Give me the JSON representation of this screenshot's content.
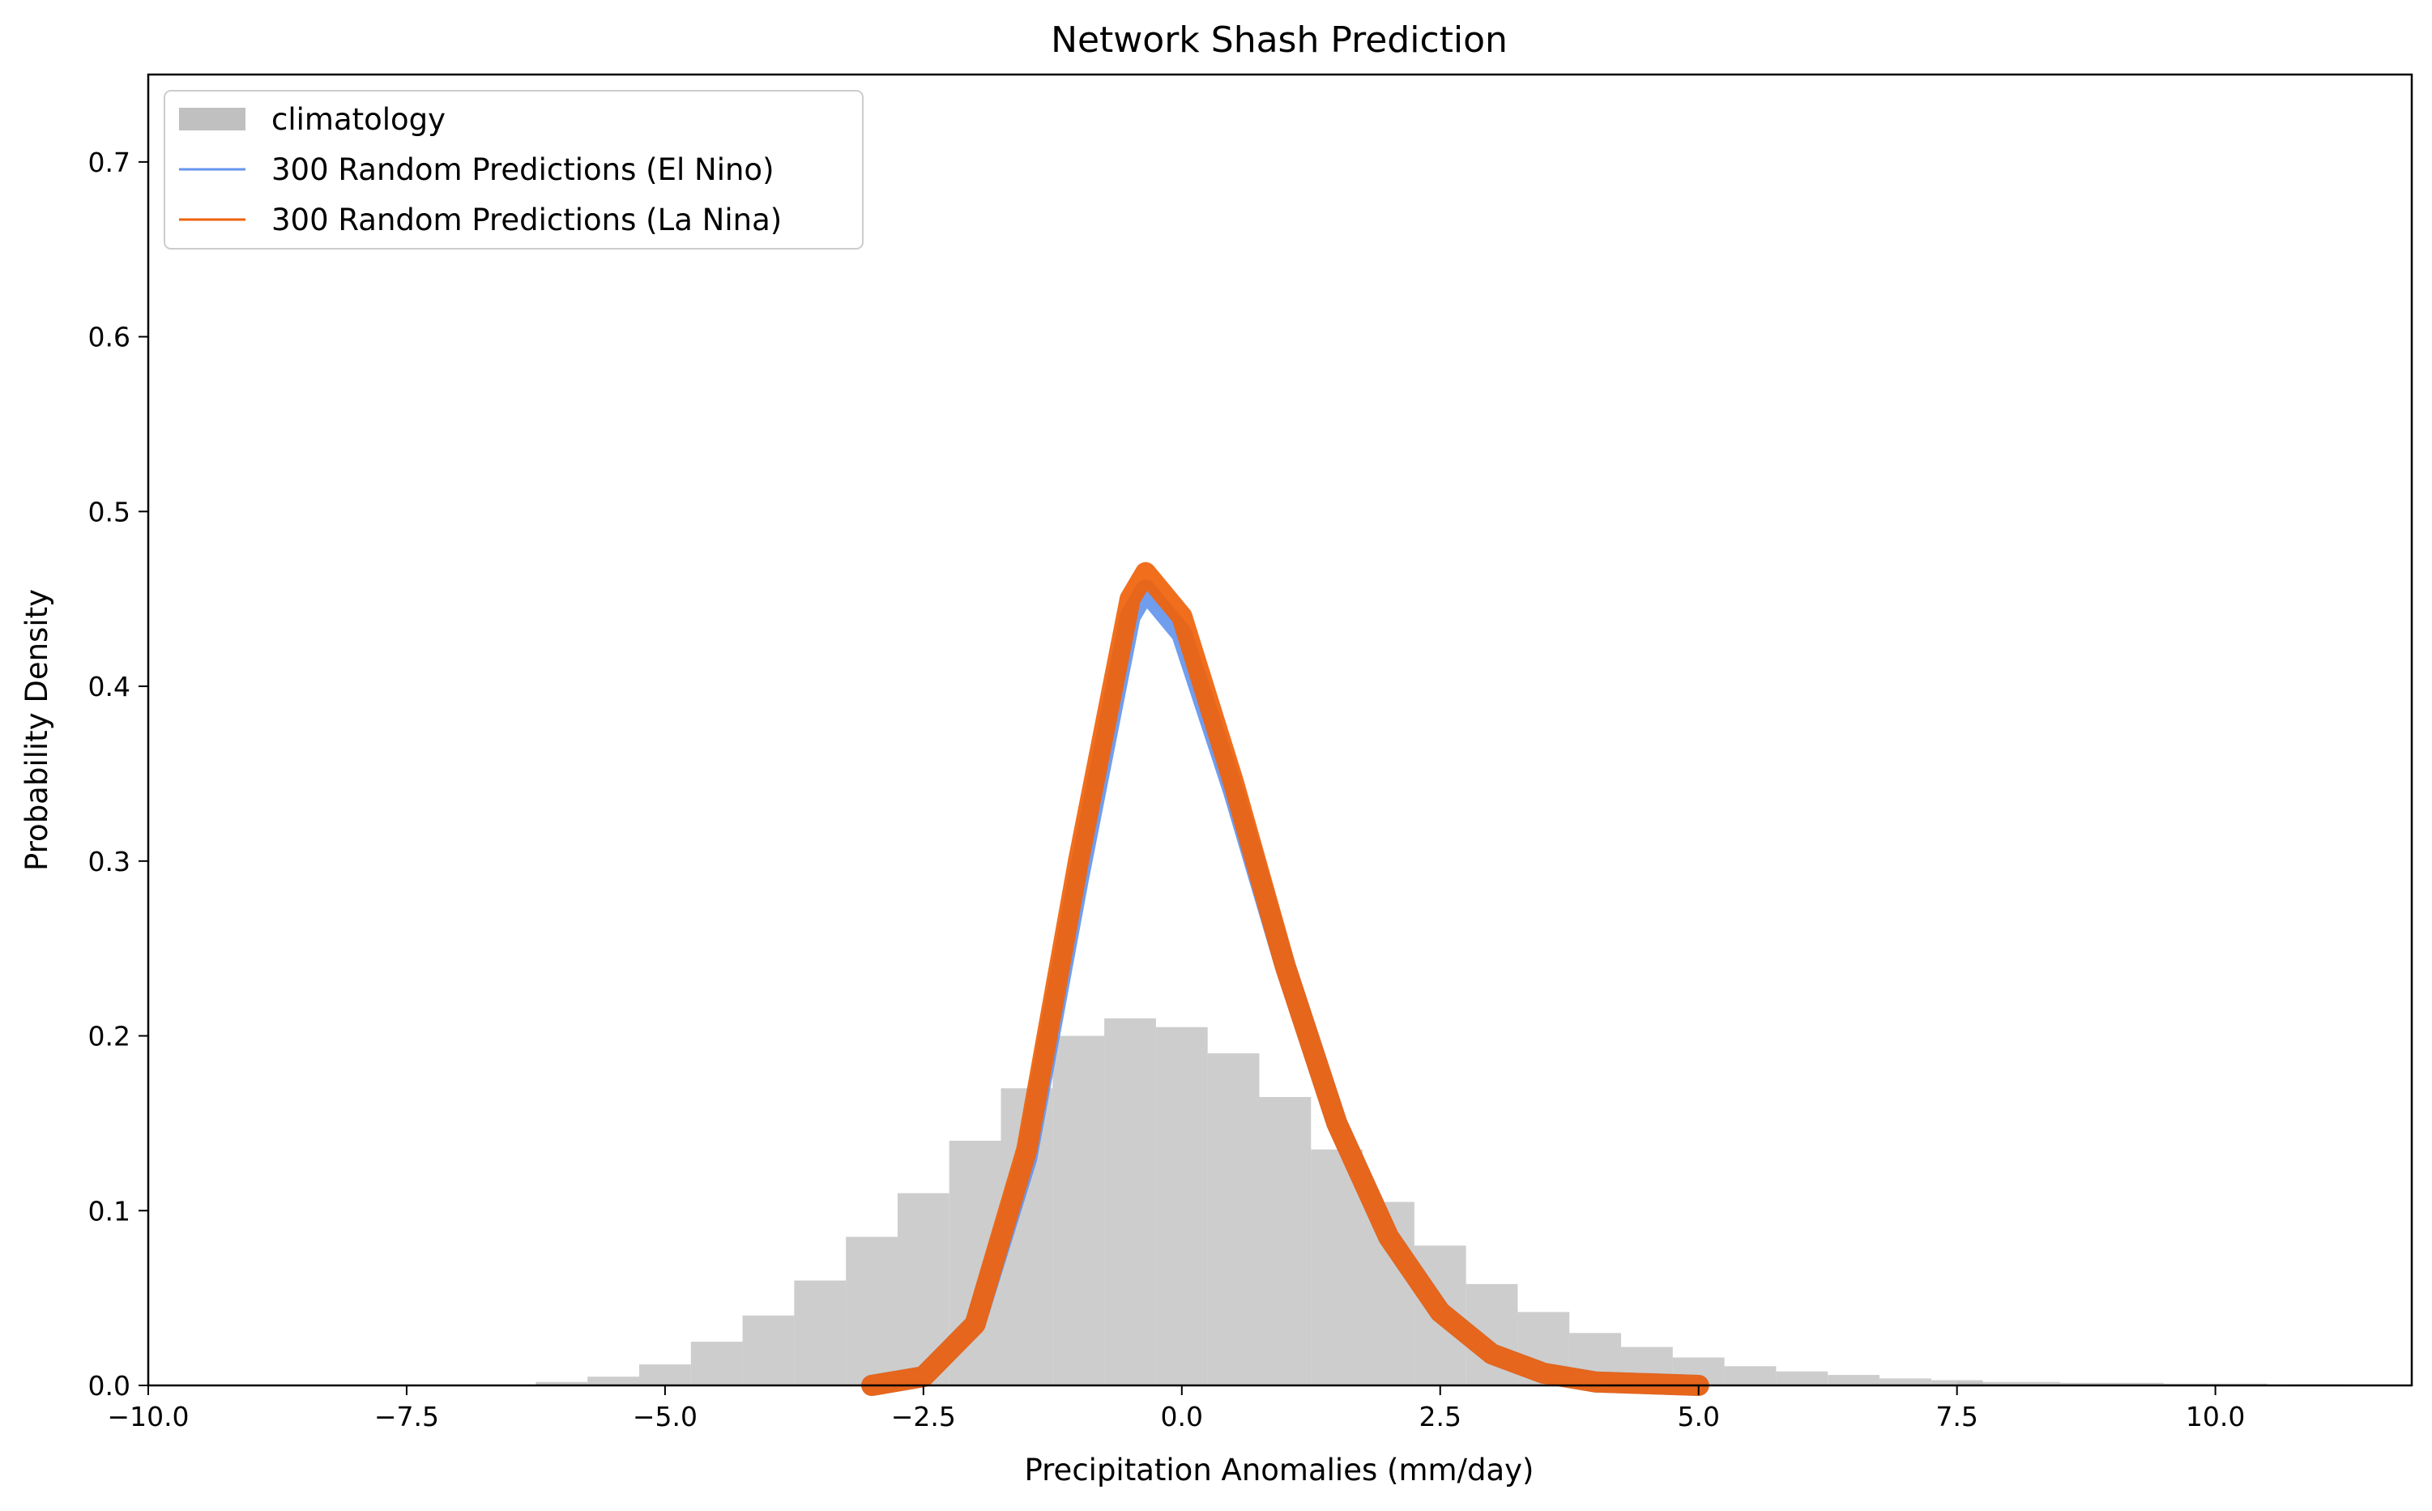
{
  "chart_data": {
    "type": "histogram+line",
    "title": "Network Shash Prediction",
    "xlabel": "Precipitation Anomalies (mm/day)",
    "ylabel": "Probability Density",
    "xlim": [
      -10.0,
      11.9
    ],
    "ylim": [
      0.0,
      0.75
    ],
    "xticks": [
      -10.0,
      -7.5,
      -5.0,
      -2.5,
      0.0,
      2.5,
      5.0,
      7.5,
      10.0
    ],
    "xtick_labels": [
      "−10.0",
      "−7.5",
      "−5.0",
      "−2.5",
      "0.0",
      "2.5",
      "5.0",
      "7.5",
      "10.0"
    ],
    "yticks": [
      0.0,
      0.1,
      0.2,
      0.3,
      0.4,
      0.5,
      0.6,
      0.7
    ],
    "ytick_labels": [
      "0.0",
      "0.1",
      "0.2",
      "0.3",
      "0.4",
      "0.5",
      "0.6",
      "0.7"
    ],
    "grid": false,
    "legend_position": "top-left",
    "colors": {
      "climatology": "#c0c0c0",
      "el_nino": "#6495ed",
      "la_nina": "#f0620a"
    },
    "legend": [
      {
        "label": "climatology",
        "kind": "patch",
        "color": "#c0c0c0"
      },
      {
        "label": "300 Random Predictions (El Nino)",
        "kind": "line",
        "color": "#6495ed"
      },
      {
        "label": "300 Random Predictions (La Nina)",
        "kind": "line",
        "color": "#f0620a"
      }
    ],
    "climatology_histogram": {
      "x": [
        -6.0,
        -5.5,
        -5.0,
        -4.5,
        -4.0,
        -3.5,
        -3.0,
        -2.5,
        -2.0,
        -1.5,
        -1.0,
        -0.5,
        0.0,
        0.5,
        1.0,
        1.5,
        2.0,
        2.5,
        3.0,
        3.5,
        4.0,
        4.5,
        5.0,
        5.5,
        6.0,
        6.5,
        7.0,
        7.5,
        8.0,
        9.0,
        10.0,
        11.0
      ],
      "density": [
        0.002,
        0.005,
        0.012,
        0.025,
        0.04,
        0.06,
        0.085,
        0.11,
        0.14,
        0.17,
        0.2,
        0.21,
        0.205,
        0.19,
        0.165,
        0.135,
        0.105,
        0.08,
        0.058,
        0.042,
        0.03,
        0.022,
        0.016,
        0.011,
        0.008,
        0.006,
        0.004,
        0.003,
        0.002,
        0.0015,
        0.001,
        0.0005
      ]
    },
    "series": [
      {
        "name": "300 Random Predictions (El Nino)",
        "x": [
          -3.0,
          -2.5,
          -2.0,
          -1.5,
          -1.0,
          -0.5,
          -0.35,
          0.0,
          0.5,
          1.0,
          1.5,
          2.0,
          2.5,
          3.0,
          3.5,
          4.0,
          5.0
        ],
        "y": [
          0.0,
          0.005,
          0.035,
          0.13,
          0.29,
          0.44,
          0.455,
          0.43,
          0.34,
          0.24,
          0.15,
          0.085,
          0.042,
          0.018,
          0.007,
          0.002,
          0.0
        ]
      },
      {
        "name": "300 Random Predictions (La Nina)",
        "x": [
          -3.0,
          -2.5,
          -2.0,
          -1.5,
          -1.0,
          -0.5,
          -0.35,
          0.0,
          0.5,
          1.0,
          1.5,
          2.0,
          2.5,
          3.0,
          3.5,
          4.0,
          5.0
        ],
        "y": [
          0.0,
          0.005,
          0.035,
          0.135,
          0.3,
          0.45,
          0.465,
          0.44,
          0.345,
          0.24,
          0.15,
          0.085,
          0.042,
          0.018,
          0.007,
          0.002,
          0.0
        ]
      }
    ]
  }
}
